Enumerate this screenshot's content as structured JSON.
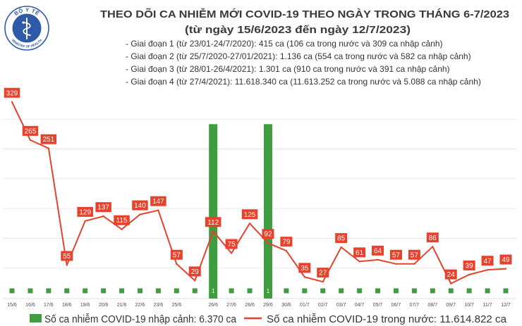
{
  "logo": {
    "top_text": "BỘ Y TẾ",
    "bottom_text": "MINISTRY OF HEALTH"
  },
  "notes": [
    "- Giai đoạn 1 (từ 23/01-24/7/2020): 415 ca (106 ca trong nước và 309 ca nhập cảnh)",
    "- Giai đoạn 2 (từ 25/7/2020-27/01/2021): 1.136 ca (554 ca trong nước và 582 ca nhập cảnh)",
    "- Giai đoạn 3 (từ 28/01-26/4/2021): 1.301 ca (910 ca trong nước và 391 ca nhập cảnh)",
    "- Giai đoạn 4 (từ 27/4/2021): 11.618.340 ca (11.613.252 ca trong nước và 5.088 ca nhập cảnh)"
  ],
  "colors": {
    "title": "#3a3a3a",
    "grid": "#e2e2e2",
    "logo": "#2e5aa8"
  },
  "chart_data": {
    "type": "line",
    "title": "THEO DÕI CA NHIỄM MỚI COVID-19 THEO NGÀY TRONG THÁNG 6-7/2023",
    "subtitle": "(từ ngày 15/6/2023 đến ngày 12/7/2023)",
    "xlabel": "",
    "ylabel": "",
    "categories": [
      "15/6",
      "16/6",
      "17/6",
      "18/6",
      "19/6",
      "20/6",
      "21/6",
      "22/6",
      "23/6",
      "25/6",
      "",
      "26/6",
      "27/6",
      "28/6",
      "29/6",
      "30/6",
      "01/7",
      "02/7",
      "03/7",
      "04/7",
      "05/7",
      "06/7",
      "07/7",
      "08/7",
      "09/7",
      "10/7",
      "11/7",
      "12/7"
    ],
    "series": [
      {
        "name": "Số ca nhiễm COVID-19 trong nước: 11.614.822 ca",
        "type": "line",
        "color": "#e8412c",
        "values": [
          329,
          265,
          251,
          55,
          129,
          137,
          115,
          140,
          147,
          57,
          29,
          112,
          75,
          125,
          92,
          79,
          35,
          27,
          85,
          61,
          64,
          57,
          57,
          86,
          24,
          39,
          47,
          49
        ]
      },
      {
        "name": "Số ca nhiễm COVID-19 nhập cảnh: 6.370 ca",
        "type": "bar",
        "color": "#3f9c3f",
        "values": [
          0,
          0,
          0,
          0,
          0,
          0,
          0,
          0,
          0,
          0,
          0,
          1,
          0,
          0,
          1,
          0,
          0,
          0,
          0,
          0,
          0,
          0,
          0,
          0,
          0,
          0,
          0,
          0
        ]
      }
    ],
    "ylim": [
      0,
      350
    ],
    "y2lim": [
      0,
      1.2
    ],
    "grid": true,
    "legend": "bottom"
  }
}
